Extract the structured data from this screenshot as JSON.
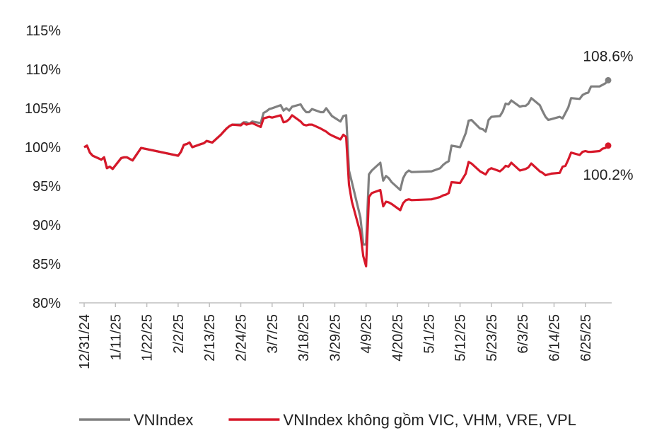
{
  "chart_data": {
    "type": "line",
    "title": "",
    "xlabel": "",
    "ylabel": "",
    "ylim": [
      80,
      115
    ],
    "y_ticks": [
      "80%",
      "85%",
      "90%",
      "95%",
      "100%",
      "105%",
      "110%",
      "115%"
    ],
    "x_ticks": [
      "12/31/24",
      "1/11/25",
      "1/22/25",
      "2/2/25",
      "2/13/25",
      "2/24/25",
      "3/7/25",
      "3/18/25",
      "3/29/25",
      "4/9/25",
      "4/20/25",
      "5/1/25",
      "5/12/25",
      "5/23/25",
      "6/3/25",
      "6/14/25",
      "6/25/25"
    ],
    "x_start": "2024-12-31",
    "grid": false,
    "legend_position": "bottom",
    "series": [
      {
        "name": "VNIndex",
        "color": "#808080",
        "end_label": "108.6%",
        "points": [
          [
            "2024-12-31",
            100.0
          ],
          [
            "2025-01-01",
            100.2
          ],
          [
            "2025-01-02",
            99.3
          ],
          [
            "2025-01-03",
            98.9
          ],
          [
            "2025-01-06",
            98.4
          ],
          [
            "2025-01-07",
            98.7
          ],
          [
            "2025-01-08",
            97.3
          ],
          [
            "2025-01-09",
            97.5
          ],
          [
            "2025-01-10",
            97.2
          ],
          [
            "2025-01-13",
            98.6
          ],
          [
            "2025-01-14",
            98.7
          ],
          [
            "2025-01-15",
            98.7
          ],
          [
            "2025-01-16",
            98.5
          ],
          [
            "2025-01-17",
            98.3
          ],
          [
            "2025-01-20",
            99.9
          ],
          [
            "2025-01-24",
            99.6
          ],
          [
            "2025-02-02",
            98.9
          ],
          [
            "2025-02-03",
            99.4
          ],
          [
            "2025-02-04",
            100.3
          ],
          [
            "2025-02-05",
            100.4
          ],
          [
            "2025-02-06",
            100.6
          ],
          [
            "2025-02-07",
            100.0
          ],
          [
            "2025-02-10",
            100.4
          ],
          [
            "2025-02-11",
            100.5
          ],
          [
            "2025-02-12",
            100.8
          ],
          [
            "2025-02-13",
            100.7
          ],
          [
            "2025-02-14",
            100.6
          ],
          [
            "2025-02-17",
            101.6
          ],
          [
            "2025-02-18",
            102.0
          ],
          [
            "2025-02-19",
            102.4
          ],
          [
            "2025-02-20",
            102.7
          ],
          [
            "2025-02-21",
            102.9
          ],
          [
            "2025-02-24",
            102.9
          ],
          [
            "2025-02-25",
            103.2
          ],
          [
            "2025-02-26",
            103.2
          ],
          [
            "2025-02-27",
            103.0
          ],
          [
            "2025-02-28",
            103.3
          ],
          [
            "2025-03-03",
            103.1
          ],
          [
            "2025-03-04",
            104.4
          ],
          [
            "2025-03-05",
            104.6
          ],
          [
            "2025-03-06",
            104.9
          ],
          [
            "2025-03-07",
            105.0
          ],
          [
            "2025-03-10",
            105.4
          ],
          [
            "2025-03-11",
            104.7
          ],
          [
            "2025-03-12",
            105.0
          ],
          [
            "2025-03-13",
            104.7
          ],
          [
            "2025-03-14",
            105.2
          ],
          [
            "2025-03-17",
            105.5
          ],
          [
            "2025-03-18",
            104.9
          ],
          [
            "2025-03-19",
            104.5
          ],
          [
            "2025-03-20",
            104.5
          ],
          [
            "2025-03-21",
            104.9
          ],
          [
            "2025-03-24",
            104.5
          ],
          [
            "2025-03-25",
            104.5
          ],
          [
            "2025-03-26",
            105.0
          ],
          [
            "2025-03-27",
            104.5
          ],
          [
            "2025-03-28",
            104.0
          ],
          [
            "2025-03-31",
            103.3
          ],
          [
            "2025-04-01",
            104.0
          ],
          [
            "2025-04-02",
            104.1
          ],
          [
            "2025-04-03",
            97.0
          ],
          [
            "2025-04-04",
            95.5
          ],
          [
            "2025-04-07",
            91.0
          ],
          [
            "2025-04-08",
            87.5
          ],
          [
            "2025-04-09",
            87.5
          ],
          [
            "2025-04-10",
            96.5
          ],
          [
            "2025-04-11",
            97.0
          ],
          [
            "2025-04-14",
            98.0
          ],
          [
            "2025-04-15",
            95.7
          ],
          [
            "2025-04-16",
            96.3
          ],
          [
            "2025-04-17",
            96.0
          ],
          [
            "2025-04-18",
            95.5
          ],
          [
            "2025-04-21",
            94.5
          ],
          [
            "2025-04-22",
            96.0
          ],
          [
            "2025-04-23",
            96.7
          ],
          [
            "2025-04-24",
            97.0
          ],
          [
            "2025-04-25",
            96.8
          ],
          [
            "2025-05-02",
            96.9
          ],
          [
            "2025-05-05",
            97.3
          ],
          [
            "2025-05-06",
            97.7
          ],
          [
            "2025-05-07",
            98.0
          ],
          [
            "2025-05-08",
            98.2
          ],
          [
            "2025-05-09",
            100.2
          ],
          [
            "2025-05-12",
            100.0
          ],
          [
            "2025-05-13",
            100.9
          ],
          [
            "2025-05-14",
            101.8
          ],
          [
            "2025-05-15",
            103.4
          ],
          [
            "2025-05-16",
            103.5
          ],
          [
            "2025-05-19",
            102.4
          ],
          [
            "2025-05-20",
            102.3
          ],
          [
            "2025-05-21",
            102.0
          ],
          [
            "2025-05-22",
            103.5
          ],
          [
            "2025-05-23",
            103.9
          ],
          [
            "2025-05-26",
            104.0
          ],
          [
            "2025-05-27",
            104.6
          ],
          [
            "2025-05-28",
            105.6
          ],
          [
            "2025-05-29",
            105.5
          ],
          [
            "2025-05-30",
            106.0
          ],
          [
            "2025-06-02",
            105.2
          ],
          [
            "2025-06-03",
            105.3
          ],
          [
            "2025-06-04",
            105.3
          ],
          [
            "2025-06-05",
            105.6
          ],
          [
            "2025-06-06",
            106.3
          ],
          [
            "2025-06-09",
            105.4
          ],
          [
            "2025-06-10",
            104.6
          ],
          [
            "2025-06-11",
            103.9
          ],
          [
            "2025-06-12",
            103.5
          ],
          [
            "2025-06-13",
            103.6
          ],
          [
            "2025-06-16",
            103.9
          ],
          [
            "2025-06-17",
            103.7
          ],
          [
            "2025-06-18",
            104.4
          ],
          [
            "2025-06-19",
            105.1
          ],
          [
            "2025-06-20",
            106.3
          ],
          [
            "2025-06-23",
            106.2
          ],
          [
            "2025-06-24",
            106.7
          ],
          [
            "2025-06-25",
            106.9
          ],
          [
            "2025-06-26",
            107.0
          ],
          [
            "2025-06-27",
            107.8
          ],
          [
            "2025-06-30",
            107.8
          ],
          [
            "2025-07-01",
            108.0
          ],
          [
            "2025-07-02",
            108.2
          ],
          [
            "2025-07-03",
            108.6
          ]
        ]
      },
      {
        "name": "VNIndex không gồm VIC, VHM, VRE, VPL",
        "color": "#d7182a",
        "end_label": "100.2%",
        "points": [
          [
            "2024-12-31",
            100.0
          ],
          [
            "2025-01-01",
            100.2
          ],
          [
            "2025-01-02",
            99.3
          ],
          [
            "2025-01-03",
            98.9
          ],
          [
            "2025-01-06",
            98.4
          ],
          [
            "2025-01-07",
            98.7
          ],
          [
            "2025-01-08",
            97.3
          ],
          [
            "2025-01-09",
            97.5
          ],
          [
            "2025-01-10",
            97.2
          ],
          [
            "2025-01-13",
            98.6
          ],
          [
            "2025-01-14",
            98.7
          ],
          [
            "2025-01-15",
            98.7
          ],
          [
            "2025-01-16",
            98.5
          ],
          [
            "2025-01-17",
            98.3
          ],
          [
            "2025-01-20",
            99.9
          ],
          [
            "2025-01-24",
            99.6
          ],
          [
            "2025-02-02",
            98.9
          ],
          [
            "2025-02-03",
            99.4
          ],
          [
            "2025-02-04",
            100.3
          ],
          [
            "2025-02-05",
            100.4
          ],
          [
            "2025-02-06",
            100.6
          ],
          [
            "2025-02-07",
            100.0
          ],
          [
            "2025-02-10",
            100.4
          ],
          [
            "2025-02-11",
            100.5
          ],
          [
            "2025-02-12",
            100.8
          ],
          [
            "2025-02-13",
            100.7
          ],
          [
            "2025-02-14",
            100.6
          ],
          [
            "2025-02-17",
            101.6
          ],
          [
            "2025-02-18",
            102.0
          ],
          [
            "2025-02-19",
            102.4
          ],
          [
            "2025-02-20",
            102.7
          ],
          [
            "2025-02-21",
            102.9
          ],
          [
            "2025-02-24",
            102.8
          ],
          [
            "2025-02-25",
            103.1
          ],
          [
            "2025-02-26",
            102.9
          ],
          [
            "2025-02-27",
            103.0
          ],
          [
            "2025-02-28",
            103.1
          ],
          [
            "2025-03-03",
            102.6
          ],
          [
            "2025-03-04",
            103.7
          ],
          [
            "2025-03-05",
            103.8
          ],
          [
            "2025-03-06",
            103.9
          ],
          [
            "2025-03-07",
            103.8
          ],
          [
            "2025-03-10",
            104.1
          ],
          [
            "2025-03-11",
            103.2
          ],
          [
            "2025-03-12",
            103.3
          ],
          [
            "2025-03-13",
            103.6
          ],
          [
            "2025-03-14",
            104.1
          ],
          [
            "2025-03-17",
            103.3
          ],
          [
            "2025-03-18",
            102.9
          ],
          [
            "2025-03-19",
            102.8
          ],
          [
            "2025-03-20",
            102.9
          ],
          [
            "2025-03-21",
            102.9
          ],
          [
            "2025-03-24",
            102.4
          ],
          [
            "2025-03-25",
            102.2
          ],
          [
            "2025-03-26",
            102.0
          ],
          [
            "2025-03-27",
            101.7
          ],
          [
            "2025-03-28",
            101.5
          ],
          [
            "2025-03-31",
            101.0
          ],
          [
            "2025-04-01",
            101.6
          ],
          [
            "2025-04-02",
            101.3
          ],
          [
            "2025-04-03",
            95.2
          ],
          [
            "2025-04-04",
            93.0
          ],
          [
            "2025-04-07",
            89.0
          ],
          [
            "2025-04-08",
            86.0
          ],
          [
            "2025-04-09",
            84.7
          ],
          [
            "2025-04-10",
            93.6
          ],
          [
            "2025-04-11",
            94.1
          ],
          [
            "2025-04-14",
            94.5
          ],
          [
            "2025-04-15",
            92.4
          ],
          [
            "2025-04-16",
            93.0
          ],
          [
            "2025-04-17",
            92.9
          ],
          [
            "2025-04-18",
            92.7
          ],
          [
            "2025-04-21",
            91.9
          ],
          [
            "2025-04-22",
            92.8
          ],
          [
            "2025-04-23",
            93.2
          ],
          [
            "2025-04-24",
            93.3
          ],
          [
            "2025-04-25",
            93.2
          ],
          [
            "2025-05-02",
            93.3
          ],
          [
            "2025-05-05",
            93.6
          ],
          [
            "2025-05-06",
            93.8
          ],
          [
            "2025-05-07",
            93.9
          ],
          [
            "2025-05-08",
            94.1
          ],
          [
            "2025-05-09",
            95.5
          ],
          [
            "2025-05-12",
            95.4
          ],
          [
            "2025-05-13",
            96.0
          ],
          [
            "2025-05-14",
            96.6
          ],
          [
            "2025-05-15",
            98.1
          ],
          [
            "2025-05-16",
            97.9
          ],
          [
            "2025-05-19",
            96.9
          ],
          [
            "2025-05-20",
            96.7
          ],
          [
            "2025-05-21",
            96.5
          ],
          [
            "2025-05-22",
            97.1
          ],
          [
            "2025-05-23",
            97.3
          ],
          [
            "2025-05-26",
            96.9
          ],
          [
            "2025-05-27",
            97.2
          ],
          [
            "2025-05-28",
            97.6
          ],
          [
            "2025-05-29",
            97.5
          ],
          [
            "2025-05-30",
            98.0
          ],
          [
            "2025-06-02",
            97.0
          ],
          [
            "2025-06-03",
            97.1
          ],
          [
            "2025-06-04",
            97.2
          ],
          [
            "2025-06-05",
            97.4
          ],
          [
            "2025-06-06",
            97.9
          ],
          [
            "2025-06-09",
            96.9
          ],
          [
            "2025-06-10",
            96.7
          ],
          [
            "2025-06-11",
            96.4
          ],
          [
            "2025-06-12",
            96.5
          ],
          [
            "2025-06-13",
            96.6
          ],
          [
            "2025-06-16",
            96.7
          ],
          [
            "2025-06-17",
            97.5
          ],
          [
            "2025-06-18",
            97.6
          ],
          [
            "2025-06-19",
            98.4
          ],
          [
            "2025-06-20",
            99.3
          ],
          [
            "2025-06-23",
            99.0
          ],
          [
            "2025-06-24",
            99.4
          ],
          [
            "2025-06-25",
            99.5
          ],
          [
            "2025-06-26",
            99.4
          ],
          [
            "2025-06-27",
            99.4
          ],
          [
            "2025-06-30",
            99.5
          ],
          [
            "2025-07-01",
            99.8
          ],
          [
            "2025-07-02",
            99.9
          ],
          [
            "2025-07-03",
            100.2
          ]
        ]
      }
    ]
  }
}
